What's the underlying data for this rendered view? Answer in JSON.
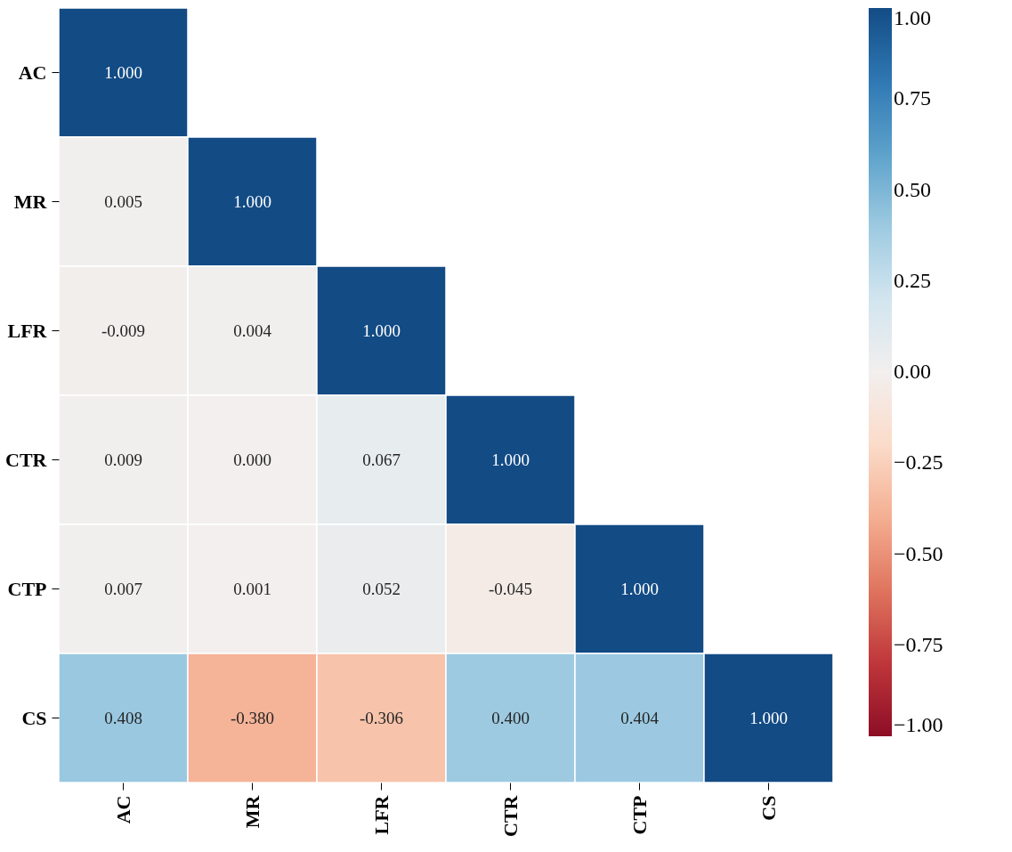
{
  "chart_data": {
    "type": "heatmap",
    "categories": [
      "AC",
      "MR",
      "LFR",
      "CTR",
      "CTP",
      "CS"
    ],
    "y_categories": [
      "AC",
      "MR",
      "LFR",
      "CTR",
      "CTP",
      "CS"
    ],
    "cells": [
      [
        1.0,
        null,
        null,
        null,
        null,
        null
      ],
      [
        0.005,
        1.0,
        null,
        null,
        null,
        null
      ],
      [
        -0.009,
        0.004,
        1.0,
        null,
        null,
        null
      ],
      [
        0.009,
        0.0,
        0.067,
        1.0,
        null,
        null
      ],
      [
        0.007,
        0.001,
        0.052,
        -0.045,
        1.0,
        null
      ],
      [
        0.408,
        -0.38,
        -0.306,
        0.4,
        0.404,
        1.0
      ]
    ],
    "cell_labels": [
      [
        "1.000",
        null,
        null,
        null,
        null,
        null
      ],
      [
        "0.005",
        "1.000",
        null,
        null,
        null,
        null
      ],
      [
        "-0.009",
        "0.004",
        "1.000",
        null,
        null,
        null
      ],
      [
        "0.009",
        "0.000",
        "0.067",
        "1.000",
        null,
        null
      ],
      [
        "0.007",
        "0.001",
        "0.052",
        "-0.045",
        "1.000",
        null
      ],
      [
        "0.408",
        "-0.380",
        "-0.306",
        "0.400",
        "0.404",
        "1.000"
      ]
    ],
    "clim": [
      -1,
      1
    ],
    "cticks": [
      {
        "value": -1,
        "label": "−1.00"
      },
      {
        "value": -0.75,
        "label": "−0.75"
      },
      {
        "value": -0.5,
        "label": "−0.50"
      },
      {
        "value": -0.25,
        "label": "−0.25"
      },
      {
        "value": 0,
        "label": "0.00"
      },
      {
        "value": 0.25,
        "label": "0.25"
      },
      {
        "value": 0.5,
        "label": "0.50"
      },
      {
        "value": 0.75,
        "label": "0.75"
      },
      {
        "value": 1,
        "label": "1.00"
      }
    ]
  }
}
